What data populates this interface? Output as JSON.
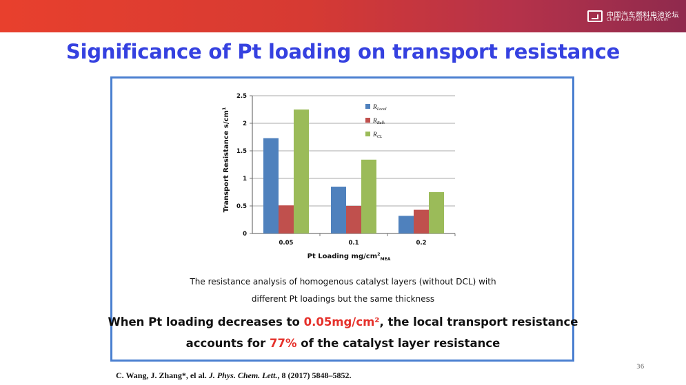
{
  "header": {
    "logo_line1": "中国汽车燃料电池论坛",
    "logo_line2": "China Auto Fuel Cell Forum"
  },
  "slide": {
    "title": "Significance of Pt loading on transport resistance",
    "caption_line1": "The resistance analysis of homogenous catalyst layers (without DCL) with",
    "caption_line2": "different Pt loadings but the same thickness",
    "highlight_line1_a": "When Pt loading decreases to ",
    "highlight_line1_b": "0.05mg/cm²",
    "highlight_line1_c": ",  the local transport resistance",
    "highlight_line2_a": "accounts for ",
    "highlight_line2_b": "77%",
    "highlight_line2_c": " of the catalyst layer resistance",
    "reference_authors": "C. Wang,  J. Zhang*, el al. ",
    "reference_journal": "J. Phys. Chem. Lett.",
    "reference_rest": ", 8 (2017) 5848–5852.",
    "page_number": "36",
    "accent_color": "#3541e0",
    "highlight_color": "#e5312b"
  },
  "chart_data": {
    "type": "bar",
    "categories": [
      "0.05",
      "0.1",
      "0.2"
    ],
    "series": [
      {
        "name": "R",
        "sub": "Local",
        "color": "#4f81bd",
        "values": [
          1.73,
          0.85,
          0.32
        ]
      },
      {
        "name": "R",
        "sub": "Bulk",
        "color": "#c0504d",
        "values": [
          0.51,
          0.5,
          0.43
        ]
      },
      {
        "name": "R",
        "sub": "CL",
        "color": "#9bbb59",
        "values": [
          2.25,
          1.34,
          0.75
        ]
      }
    ],
    "xlabel": "Pt Loading mg/cm",
    "xlabel_sup": "2",
    "xlabel_sub": "MEA",
    "ylabel": "Transport Resistance s/cm",
    "ylabel_sup": "1",
    "ylim": [
      0,
      2.5
    ],
    "yticks": [
      "0",
      "0.5",
      "1",
      "1.5",
      "2",
      "2.5"
    ],
    "grid": true,
    "legend_position": "top-right"
  }
}
